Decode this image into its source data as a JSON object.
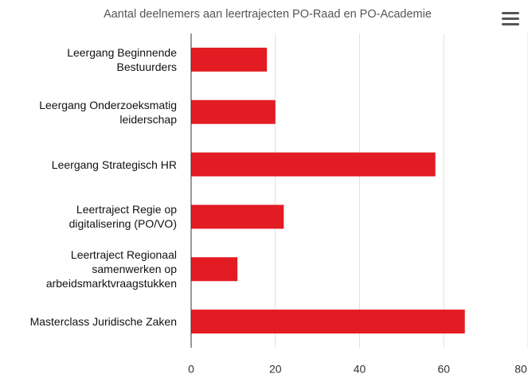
{
  "chart_data": {
    "type": "bar",
    "orientation": "horizontal",
    "title": "Aantal deelnemers aan leertrajecten PO-Raad en PO-Academie",
    "categories": [
      "Leergang Beginnende Bestuurders",
      "Leergang Onderzoeksmatig leiderschap",
      "Leergang Strategisch HR",
      "Leertraject Regie op digitalisering (PO/VO)",
      "Leertraject Regionaal samenwerken op arbeidsmarktvraagstukken",
      "Masterclass Juridische Zaken"
    ],
    "values": [
      18,
      20,
      58,
      22,
      11,
      65
    ],
    "color": "#e31b23",
    "xlim": [
      0,
      80
    ],
    "xticks": [
      0,
      20,
      40,
      60,
      80
    ],
    "grid": true
  }
}
